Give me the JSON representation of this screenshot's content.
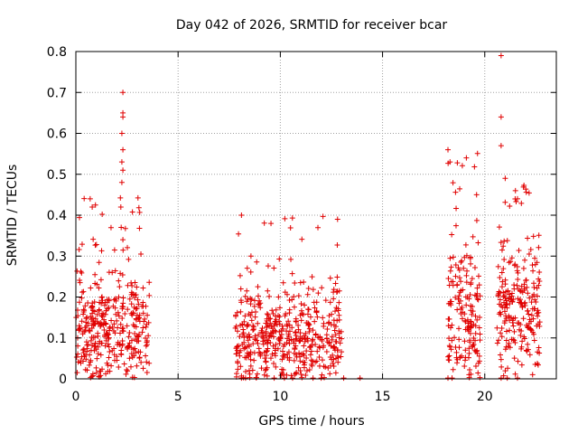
{
  "chart_data": {
    "type": "scatter",
    "title": "Day 042 of 2026, SRMTID for receiver bcar",
    "xlabel": "GPS time / hours",
    "ylabel": "SRMTID / TECUs",
    "xlim": [
      0,
      23.5
    ],
    "ylim": [
      0,
      0.8
    ],
    "xticks": [
      "0",
      "5",
      "10",
      "15",
      "20"
    ],
    "xtick_values": [
      0,
      5,
      10,
      15,
      20
    ],
    "yticks": [
      "0",
      "0.1",
      "0.2",
      "0.3",
      "0.4",
      "0.5",
      "0.6",
      "0.7",
      "0.8"
    ],
    "ytick_values": [
      0,
      0.1,
      0.2,
      0.3,
      0.4,
      0.5,
      0.6,
      0.7,
      0.8
    ],
    "grid": true,
    "marker": "+",
    "marker_color": "#e00000",
    "clusters": [
      {
        "name": "cluster-1",
        "x_range": [
          0.0,
          3.6
        ],
        "n": 360,
        "y_mode": 0.12,
        "y_spread": 0.09,
        "y_max": 0.45
      },
      {
        "name": "cluster-2",
        "x_range": [
          7.8,
          13.0
        ],
        "n": 480,
        "y_mode": 0.1,
        "y_spread": 0.08,
        "y_max": 0.4
      },
      {
        "name": "cluster-3",
        "x_range": [
          18.2,
          19.8
        ],
        "n": 170,
        "y_mode": 0.15,
        "y_spread": 0.11,
        "y_max": 0.56
      },
      {
        "name": "cluster-4",
        "x_range": [
          20.6,
          22.7
        ],
        "n": 220,
        "y_mode": 0.18,
        "y_spread": 0.1,
        "y_max": 0.5
      }
    ],
    "outliers": [
      {
        "x": 2.3,
        "y": 0.7
      },
      {
        "x": 2.3,
        "y": 0.65
      },
      {
        "x": 2.3,
        "y": 0.64
      },
      {
        "x": 2.25,
        "y": 0.6
      },
      {
        "x": 2.3,
        "y": 0.56
      },
      {
        "x": 2.25,
        "y": 0.53
      },
      {
        "x": 2.3,
        "y": 0.51
      },
      {
        "x": 2.25,
        "y": 0.48
      },
      {
        "x": 2.2,
        "y": 0.42
      },
      {
        "x": 2.3,
        "y": 0.34
      },
      {
        "x": 20.8,
        "y": 0.79
      },
      {
        "x": 20.8,
        "y": 0.64
      },
      {
        "x": 20.8,
        "y": 0.57
      },
      {
        "x": 21.0,
        "y": 0.49
      },
      {
        "x": 21.5,
        "y": 0.46
      },
      {
        "x": 21.6,
        "y": 0.44
      },
      {
        "x": 18.2,
        "y": 0.56
      },
      {
        "x": 18.3,
        "y": 0.53
      },
      {
        "x": 19.1,
        "y": 0.54
      },
      {
        "x": 19.6,
        "y": 0.45
      },
      {
        "x": 12.8,
        "y": 0.39
      },
      {
        "x": 8.1,
        "y": 0.4
      },
      {
        "x": 0.7,
        "y": 0.44
      },
      {
        "x": 0.8,
        "y": 0.42
      }
    ],
    "baseline_points_x": [
      8.1,
      8.3,
      9.7,
      10.2,
      10.6,
      11.6,
      12.0,
      13.1,
      13.9,
      18.2,
      18.4,
      20.8,
      21.1,
      21.6
    ]
  }
}
